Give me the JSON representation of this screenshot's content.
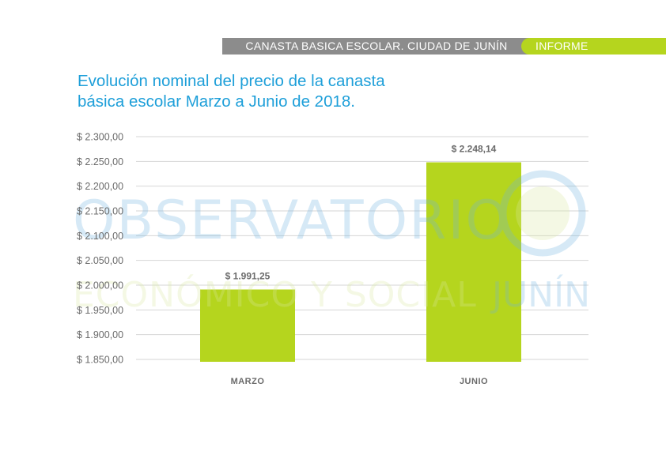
{
  "header": {
    "section_label": "CANASTA BASICA ESCOLAR.  CIUDAD DE JUNÍN",
    "tag_label": "INFORME"
  },
  "page": {
    "title_line1": "Evolución nominal del precio de la canasta",
    "title_line2": "básica escolar Marzo a Junio de 2018."
  },
  "watermark": {
    "line1": "OBSERVATORIO",
    "line2": "ECONÓMICO Y SOCIAL",
    "line3": "JUNÍN"
  },
  "colors": {
    "accent_green": "#b5d51e",
    "title_blue": "#1e9fd9",
    "header_gray": "#8c8c8c"
  },
  "chart_data": {
    "type": "bar",
    "title": "Evolución nominal del precio de la canasta básica escolar Marzo a Junio de 2018.",
    "categories": [
      "MARZO",
      "JUNIO"
    ],
    "values": [
      1991.25,
      2248.14
    ],
    "data_labels": [
      "$ 1.991,25",
      "$ 2.248,14"
    ],
    "ylim": [
      1850,
      2300
    ],
    "yticks": [
      1850,
      1900,
      1950,
      2000,
      2050,
      2100,
      2150,
      2200,
      2250,
      2300
    ],
    "ytick_labels": [
      "$ 1.850,00",
      "$ 1.900,00",
      "$ 1.950,00",
      "$ 2.000,00",
      "$ 2.050,00",
      "$ 2.100,00",
      "$ 2.150,00",
      "$ 2.200,00",
      "$ 2.250,00",
      "$ 2.300,00"
    ],
    "grid": true,
    "bar_color": "#b5d51e"
  }
}
